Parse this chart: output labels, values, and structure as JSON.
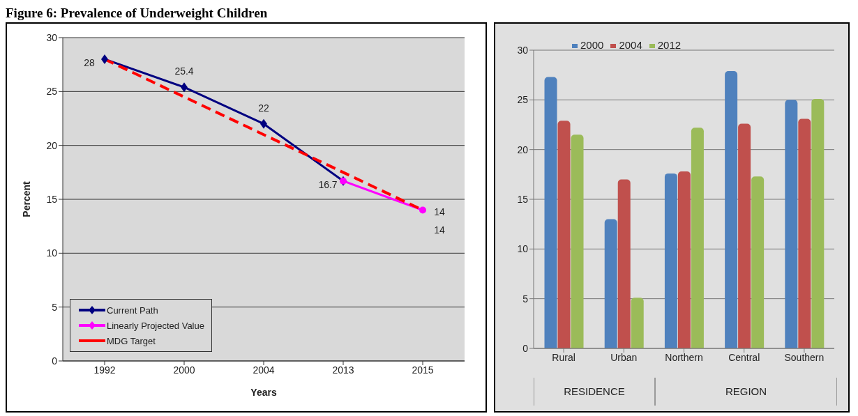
{
  "chart_data": [
    {
      "type": "line",
      "title": "Figure 6: Prevalence of Underweight Children",
      "xlabel": "Years",
      "ylabel": "Percent",
      "categories": [
        "1992",
        "2000",
        "2004",
        "2013",
        "2015"
      ],
      "series": [
        {
          "name": "Current Path",
          "color": "#000080",
          "values": [
            28,
            25.4,
            22,
            16.7,
            null
          ],
          "marker": "diamond",
          "line_style": "solid",
          "value_labels": [
            "28",
            "25.4",
            "22",
            "16.7",
            null
          ]
        },
        {
          "name": "Linearly Projected Value",
          "color": "#ff00ff",
          "values": [
            null,
            null,
            null,
            16.7,
            14
          ],
          "marker": "circle",
          "line_style": "solid",
          "value_labels": [
            null,
            null,
            null,
            null,
            "14"
          ]
        },
        {
          "name": "MDG Target",
          "color": "#ff0000",
          "values": [
            28,
            24.5,
            21,
            17.5,
            14
          ],
          "marker": "none",
          "line_style": "dashed",
          "value_labels": [
            null,
            null,
            null,
            null,
            "14"
          ]
        }
      ],
      "ylim": [
        0,
        30
      ],
      "yticks": [
        0,
        5,
        10,
        15,
        20,
        25,
        30
      ],
      "grid": "y",
      "legend": "bottom left"
    },
    {
      "type": "bar",
      "categories": [
        "Rural",
        "Urban",
        "Northern",
        "Central",
        "Southern"
      ],
      "annotations": [
        "RESIDENCE",
        "REGION"
      ],
      "series": [
        {
          "name": "2000",
          "color": "#4f81bd",
          "values": [
            27.3,
            13.0,
            17.6,
            27.9,
            25.0
          ]
        },
        {
          "name": "2004",
          "color": "#c0504d",
          "values": [
            22.9,
            17.0,
            17.8,
            22.6,
            23.1
          ]
        },
        {
          "name": "2012",
          "color": "#9bbb59",
          "values": [
            21.5,
            5.1,
            22.2,
            17.3,
            25.1
          ]
        }
      ],
      "ylim": [
        0,
        30
      ],
      "yticks": [
        0,
        5,
        10,
        15,
        20,
        25,
        30
      ],
      "grid": "y",
      "legend": "top left"
    }
  ]
}
